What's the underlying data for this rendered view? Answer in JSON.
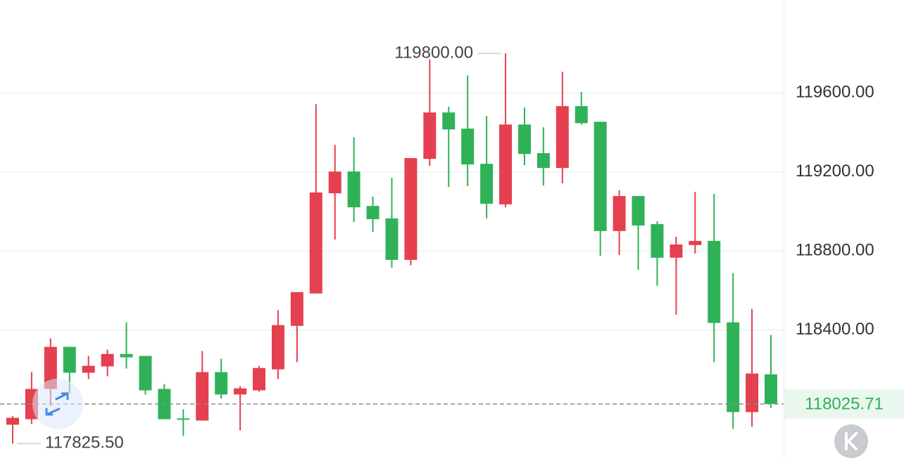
{
  "chart_data": {
    "type": "candlestick",
    "up_color": "#e5404f",
    "down_color": "#2fb257",
    "grid": true,
    "ylim": [
      117745,
      120070
    ],
    "yticks": [
      {
        "value": 118400,
        "label": "118400.00"
      },
      {
        "value": 118800,
        "label": "118800.00"
      },
      {
        "value": 119200,
        "label": "119200.00"
      },
      {
        "value": 119600,
        "label": "119600.00"
      }
    ],
    "open": [
      117921,
      117949,
      118102,
      118315,
      118184,
      118216,
      118279,
      118269,
      118102,
      117953,
      117942,
      118187,
      118074,
      118095,
      118201,
      118421,
      118585,
      119092,
      119202,
      119028,
      118965,
      118755,
      119266,
      119501,
      119419,
      119241,
      119036,
      119440,
      119295,
      119220,
      119533,
      119454,
      118901,
      119078,
      118936,
      118766,
      118830,
      118851,
      118439,
      117985,
      118176
    ],
    "high": [
      117964,
      118187,
      118358,
      118315,
      118269,
      118301,
      118439,
      118269,
      118127,
      117999,
      118294,
      118255,
      118116,
      118219,
      118500,
      118592,
      119543,
      119337,
      119376,
      119075,
      119170,
      119270,
      119770,
      119529,
      119689,
      119483,
      119800,
      119525,
      119426,
      119707,
      119604,
      119454,
      119107,
      119078,
      118950,
      118872,
      119099,
      119089,
      118688,
      118507,
      118375
    ],
    "low": [
      117825.5,
      117924,
      118017,
      118081,
      118152,
      118166,
      118205,
      118074,
      117949,
      117864,
      117942,
      118052,
      117892,
      118088,
      118152,
      118237,
      118585,
      118858,
      118947,
      118897,
      118716,
      118727,
      119231,
      119124,
      119128,
      118965,
      119021,
      119234,
      119131,
      119142,
      119440,
      118776,
      118780,
      118705,
      118624,
      118478,
      118787,
      118237,
      117900,
      117910,
      118006
    ],
    "close": [
      117956,
      118102,
      118315,
      118184,
      118219,
      118279,
      118262,
      118095,
      117949,
      117946,
      118187,
      118074,
      118105,
      118208,
      118425,
      118592,
      119096,
      119202,
      119021,
      118961,
      118755,
      119270,
      119501,
      119415,
      119238,
      119039,
      119440,
      119291,
      119220,
      119533,
      119447,
      118901,
      119078,
      118929,
      118766,
      118833,
      118851,
      118436,
      117985,
      118180,
      118025.71
    ],
    "high_marker": {
      "value": 119800,
      "label": "119800.00"
    },
    "low_marker": {
      "value": 117825.5,
      "label": "117825.50"
    },
    "last_price": 118025.71
  }
}
